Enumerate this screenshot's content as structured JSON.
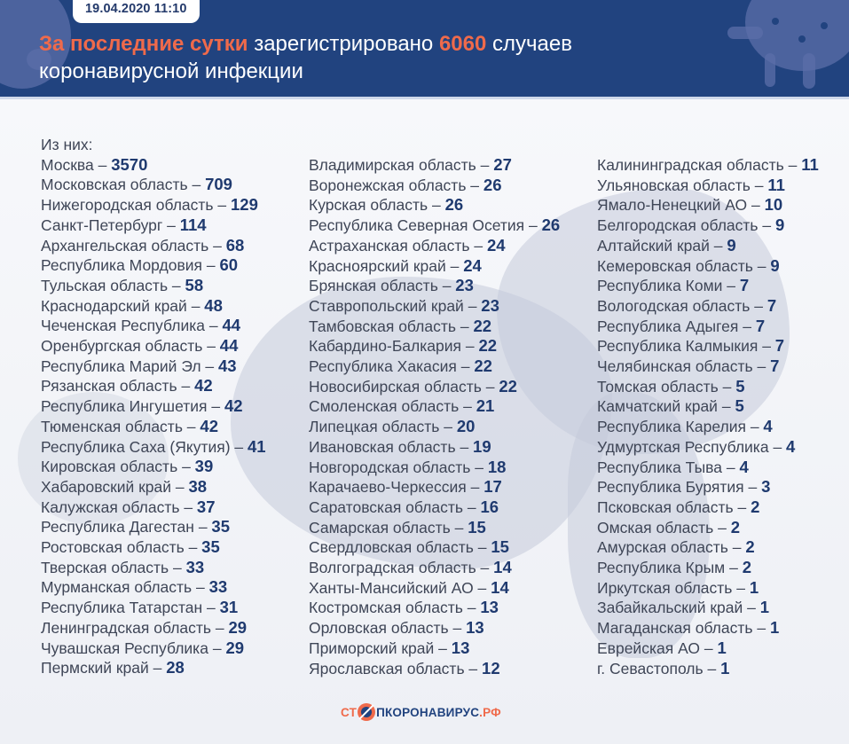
{
  "header": {
    "date": "19.04.2020 11:10",
    "headline_accent": "За последние сутки",
    "headline_mid": " зарегистрировано ",
    "headline_number": "6060",
    "headline_tail": " случаев",
    "headline_line2": "коронавирусной инфекции",
    "colors": {
      "background": "#21437f",
      "accent": "#ef6a4b",
      "number": "#1f3a6f"
    }
  },
  "list": {
    "subhead": "Из них:",
    "columns": [
      [
        {
          "name": "Москва",
          "value": "3570"
        },
        {
          "name": "Московская область",
          "value": "709"
        },
        {
          "name": "Нижегородская область",
          "value": "129"
        },
        {
          "name": "Санкт-Петербург",
          "value": "114"
        },
        {
          "name": "Архангельская область",
          "value": "68"
        },
        {
          "name": "Республика Мордовия",
          "value": "60"
        },
        {
          "name": "Тульская область",
          "value": "58"
        },
        {
          "name": "Краснодарский край",
          "value": "48"
        },
        {
          "name": "Чеченская Республика",
          "value": "44"
        },
        {
          "name": "Оренбургская область",
          "value": "44"
        },
        {
          "name": "Республика Марий Эл",
          "value": "43"
        },
        {
          "name": "Рязанская область",
          "value": "42"
        },
        {
          "name": "Республика Ингушетия",
          "value": "42"
        },
        {
          "name": "Тюменская область",
          "value": "42"
        },
        {
          "name": "Республика Саха (Якутия)",
          "value": "41"
        },
        {
          "name": "Кировская область",
          "value": "39"
        },
        {
          "name": "Хабаровский край",
          "value": "38"
        },
        {
          "name": "Калужская область",
          "value": "37"
        },
        {
          "name": "Республика Дагестан",
          "value": "35"
        },
        {
          "name": "Ростовская область",
          "value": "35"
        },
        {
          "name": "Тверская область",
          "value": "33"
        },
        {
          "name": "Мурманская область",
          "value": "33"
        },
        {
          "name": "Республика Татарстан",
          "value": "31"
        },
        {
          "name": "Ленинградская область",
          "value": "29"
        },
        {
          "name": "Чувашская Республика",
          "value": "29"
        },
        {
          "name": "Пермский край",
          "value": "28"
        }
      ],
      [
        {
          "name": "Владимирская область",
          "value": "27"
        },
        {
          "name": "Воронежская область",
          "value": "26"
        },
        {
          "name": "Курская область",
          "value": "26"
        },
        {
          "name": "Республика Северная Осетия",
          "value": "26"
        },
        {
          "name": "Астраханская область",
          "value": "24"
        },
        {
          "name": "Красноярский край",
          "value": "24"
        },
        {
          "name": "Брянская область",
          "value": "23"
        },
        {
          "name": "Ставропольский край",
          "value": "23"
        },
        {
          "name": "Тамбовская область",
          "value": "22"
        },
        {
          "name": "Кабардино-Балкария",
          "value": "22"
        },
        {
          "name": "Республика Хакасия",
          "value": "22"
        },
        {
          "name": "Новосибирская область",
          "value": "22"
        },
        {
          "name": "Смоленская область",
          "value": "21"
        },
        {
          "name": "Липецкая область",
          "value": "20"
        },
        {
          "name": "Ивановская область",
          "value": "19"
        },
        {
          "name": "Новгородская область",
          "value": "18"
        },
        {
          "name": "Карачаево-Черкессия",
          "value": "17"
        },
        {
          "name": "Саратовская область",
          "value": "16"
        },
        {
          "name": "Самарская область",
          "value": "15"
        },
        {
          "name": "Свердловская область",
          "value": "15"
        },
        {
          "name": "Волгоградская область",
          "value": "14"
        },
        {
          "name": "Ханты-Мансийский АО",
          "value": "14"
        },
        {
          "name": "Костромская область",
          "value": "13"
        },
        {
          "name": "Орловская область",
          "value": "13"
        },
        {
          "name": "Приморский край",
          "value": "13"
        },
        {
          "name": "Ярославская область",
          "value": "12"
        }
      ],
      [
        {
          "name": "Калининградская область",
          "value": "11"
        },
        {
          "name": "Ульяновская область",
          "value": "11"
        },
        {
          "name": "Ямало-Ненецкий АО",
          "value": "10"
        },
        {
          "name": "Белгородская область",
          "value": "9"
        },
        {
          "name": "Алтайский край",
          "value": "9"
        },
        {
          "name": "Кемеровская область",
          "value": "9"
        },
        {
          "name": "Республика Коми",
          "value": "7"
        },
        {
          "name": "Вологодская область",
          "value": "7"
        },
        {
          "name": "Республика Адыгея",
          "value": "7"
        },
        {
          "name": "Республика Калмыкия",
          "value": "7"
        },
        {
          "name": "Челябинская область",
          "value": "7"
        },
        {
          "name": "Томская область",
          "value": "5"
        },
        {
          "name": "Камчатский край",
          "value": "5"
        },
        {
          "name": "Республика Карелия",
          "value": "4"
        },
        {
          "name": "Удмуртская Республика",
          "value": "4"
        },
        {
          "name": "Республика Тыва",
          "value": "4"
        },
        {
          "name": "Республика Бурятия",
          "value": "3"
        },
        {
          "name": "Псковская область",
          "value": "2"
        },
        {
          "name": "Омская область",
          "value": "2"
        },
        {
          "name": "Амурская область",
          "value": "2"
        },
        {
          "name": "Республика Крым",
          "value": "2"
        },
        {
          "name": "Иркутская область",
          "value": "1"
        },
        {
          "name": "Забайкальский край",
          "value": "1"
        },
        {
          "name": "Магаданская область",
          "value": "1"
        },
        {
          "name": "Еврейская АО",
          "value": "1"
        },
        {
          "name": "г. Севастополь",
          "value": "1"
        }
      ]
    ],
    "separator": " – "
  },
  "footer": {
    "logo_part1": "СТ",
    "logo_part2": "ПКОРОНАВИРУС",
    "logo_part3": ".РФ"
  }
}
